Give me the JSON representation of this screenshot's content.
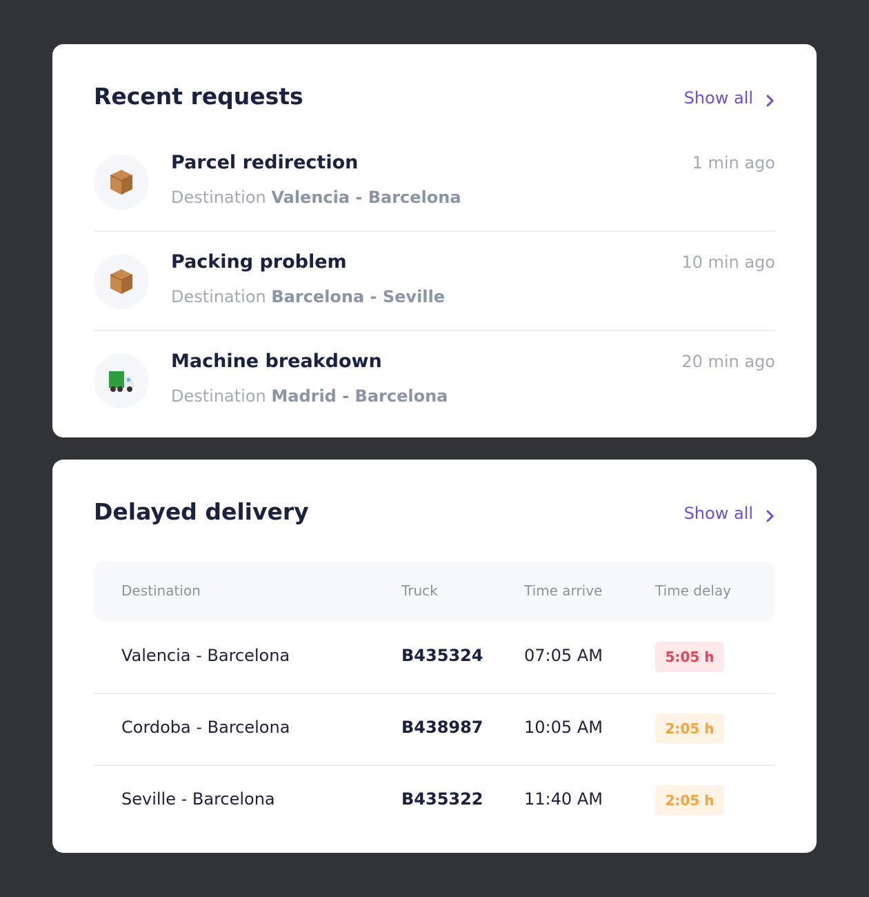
{
  "recent_requests": {
    "title": "Recent requests",
    "show_all": "Show all",
    "items": [
      {
        "title": "Parcel redirection",
        "destination_label": "Destination",
        "route": "Valencia - Barcelona",
        "time": "1 min ago"
      },
      {
        "title": "Packing problem",
        "destination_label": "Destination",
        "route": "Barcelona - Seville",
        "time": "10 min ago"
      },
      {
        "title": "Machine breakdown",
        "destination_label": "Destination",
        "route": "Madrid - Barcelona",
        "time": "20 min ago"
      }
    ]
  },
  "delayed_delivery": {
    "title": "Delayed delivery",
    "show_all": "Show all",
    "table": {
      "headers": [
        "Destination",
        "Truck",
        "Time arrive",
        "Time delay"
      ],
      "rows": [
        [
          "Valencia - Barcelona",
          "B435324",
          "07:05 AM",
          "5:05 h"
        ],
        [
          "Cordoba - Barcelona",
          "B438987",
          "10:05 AM",
          "2:05 h"
        ],
        [
          "Seville - Barcelona",
          "B435322",
          "11:40 AM",
          "2:05 h"
        ]
      ]
    }
  }
}
